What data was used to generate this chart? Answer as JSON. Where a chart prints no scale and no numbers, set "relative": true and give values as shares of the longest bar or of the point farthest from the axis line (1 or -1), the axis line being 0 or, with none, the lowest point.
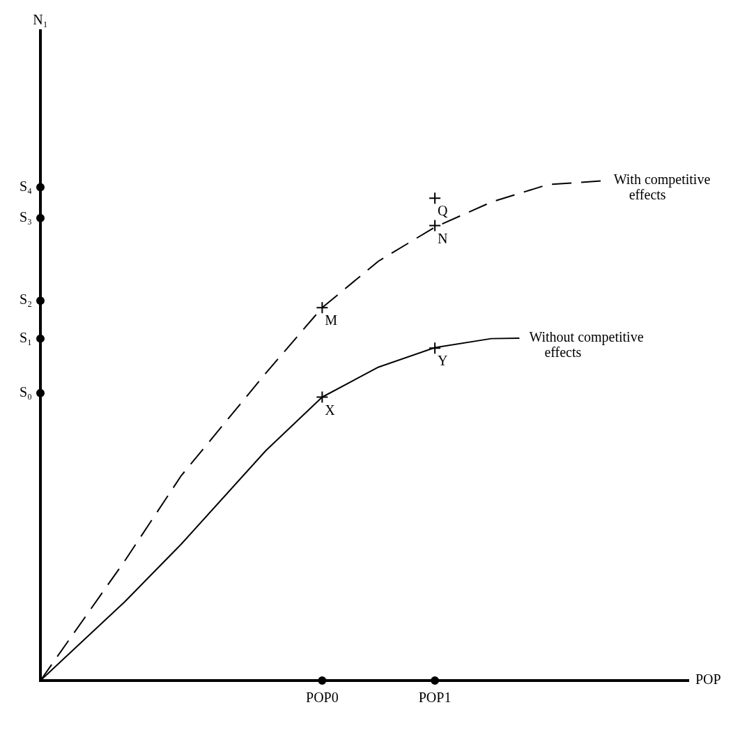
{
  "chart_data": {
    "type": "line",
    "relative": true,
    "xlabel": "POP",
    "categories": [
      null,
      null,
      null,
      null,
      null,
      null,
      null,
      null,
      null,
      null,
      "POP0",
      null,
      null,
      null,
      "POP1",
      null,
      null,
      null,
      null,
      null,
      null,
      null,
      null,
      null
    ],
    "series": [
      {
        "name": "With competitive effects",
        "color": "#000000",
        "line_style": "dashed",
        "marker": "none",
        "values": [
          0,
          null,
          null,
          0.24,
          null,
          0.41,
          null,
          null,
          0.615,
          null,
          0.746,
          null,
          0.839,
          null,
          0.907,
          null,
          0.957,
          null,
          0.992,
          null,
          1,
          null,
          null,
          null
        ]
      },
      {
        "name": "Without competitive effects",
        "color": "#000000",
        "line_style": "solid",
        "marker": "none",
        "values": [
          0,
          null,
          null,
          0.158,
          null,
          0.273,
          null,
          null,
          0.46,
          null,
          0.567,
          null,
          0.627,
          null,
          0.666,
          null,
          0.684,
          0.685,
          null,
          null,
          null,
          null,
          null,
          null
        ]
      },
      {
        "type": "scatter",
        "color": "#000000",
        "marker": "cross",
        "values": [
          null,
          null,
          null,
          null,
          null,
          null,
          null,
          null,
          null,
          null,
          0.746,
          null,
          null,
          null,
          0.91,
          null,
          null,
          null,
          null,
          null,
          null,
          null,
          null,
          null
        ]
      },
      {
        "type": "scatter",
        "color": "#000000",
        "marker": "cross",
        "values": [
          null,
          null,
          null,
          null,
          null,
          null,
          null,
          null,
          null,
          null,
          0.567,
          null,
          null,
          null,
          0.665,
          null,
          null,
          null,
          null,
          null,
          null,
          null,
          null,
          null
        ]
      },
      {
        "type": "scatter",
        "color": "#000000",
        "marker": "cross",
        "values": [
          null,
          null,
          null,
          null,
          null,
          null,
          null,
          null,
          null,
          null,
          null,
          null,
          null,
          null,
          0.965,
          null,
          null,
          null,
          null,
          null,
          null,
          null,
          null,
          null
        ]
      },
      {
        "type": "scatter",
        "color": "#000000",
        "marker": "circle",
        "values": [
          null,
          null,
          null,
          null,
          null,
          null,
          null,
          null,
          null,
          null,
          0,
          null,
          null,
          null,
          0,
          null,
          null,
          null,
          null,
          null,
          null,
          null,
          null,
          null
        ]
      },
      {
        "name": "S₄",
        "type": "scatter",
        "color": "#000000",
        "marker": "circle",
        "values": [
          0.987,
          null,
          null,
          null,
          null,
          null,
          null,
          null,
          null,
          null,
          null,
          null,
          null,
          null,
          null,
          null,
          null,
          null,
          null,
          null,
          null,
          null,
          null,
          null
        ]
      },
      {
        "name": "S₃",
        "type": "scatter",
        "color": "#000000",
        "marker": "circle",
        "values": [
          0.925,
          null,
          null,
          null,
          null,
          null,
          null,
          null,
          null,
          null,
          null,
          null,
          null,
          null,
          null,
          null,
          null,
          null,
          null,
          null,
          null,
          null,
          null,
          null
        ]
      },
      {
        "name": "S₂",
        "type": "scatter",
        "color": "#000000",
        "marker": "circle",
        "values": [
          0.76,
          null,
          null,
          null,
          null,
          null,
          null,
          null,
          null,
          null,
          null,
          null,
          null,
          null,
          null,
          null,
          null,
          null,
          null,
          null,
          null,
          null,
          null,
          null
        ]
      },
      {
        "name": "S₁",
        "type": "scatter",
        "color": "#000000",
        "marker": "circle",
        "values": [
          0.684,
          null,
          null,
          null,
          null,
          null,
          null,
          null,
          null,
          null,
          null,
          null,
          null,
          null,
          null,
          null,
          null,
          null,
          null,
          null,
          null,
          null,
          null,
          null
        ]
      },
      {
        "name": "S₀",
        "type": "scatter",
        "color": "#000000",
        "marker": "circle",
        "values": [
          0.575,
          null,
          null,
          null,
          null,
          null,
          null,
          null,
          null,
          null,
          null,
          null,
          null,
          null,
          null,
          null,
          null,
          null,
          null,
          null,
          null,
          null,
          null,
          null
        ]
      }
    ],
    "annotations": [
      "N₁",
      {
        "text": "M",
        "x": "POP0",
        "y": 0.746
      },
      {
        "text": "X",
        "x": "POP0",
        "y": 0.567
      },
      {
        "text": "N",
        "x": "POP1",
        "y": 0.91
      },
      {
        "text": "Y",
        "x": "POP1",
        "y": 0.665
      },
      {
        "text": "Q",
        "x": "POP1",
        "y": 0.965
      }
    ]
  }
}
